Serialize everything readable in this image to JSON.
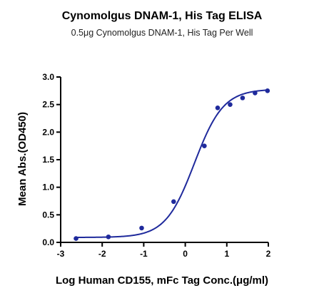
{
  "chart_data": {
    "type": "scatter",
    "title": "Cynomolgus DNAM-1, His Tag ELISA",
    "subtitle": "0.5μg Cynomolgus DNAM-1, His Tag Per Well",
    "xlabel": "Log Human CD155, mFc Tag Conc.(μg/ml)",
    "ylabel": "Mean Abs.(OD450)",
    "xlim": [
      -3,
      2
    ],
    "ylim": [
      0,
      3
    ],
    "x_ticks": [
      "-3",
      "-2",
      "-1",
      "0",
      "1",
      "2"
    ],
    "y_ticks": [
      "0.0",
      "0.5",
      "1.0",
      "1.5",
      "2.0",
      "2.5",
      "3.0"
    ],
    "grid": false,
    "series": [
      {
        "color": "#1f2a9c",
        "x": [
          -2.63,
          -1.85,
          -1.05,
          -0.28,
          0.46,
          0.78,
          1.08,
          1.38,
          1.68,
          1.98
        ],
        "y": [
          0.07,
          0.1,
          0.26,
          0.74,
          1.75,
          2.44,
          2.5,
          2.62,
          2.71,
          2.75
        ],
        "fit": {
          "bottom": 0.09,
          "top": 2.78,
          "ec50_log": 0.22,
          "hill": 1.25
        }
      }
    ]
  }
}
